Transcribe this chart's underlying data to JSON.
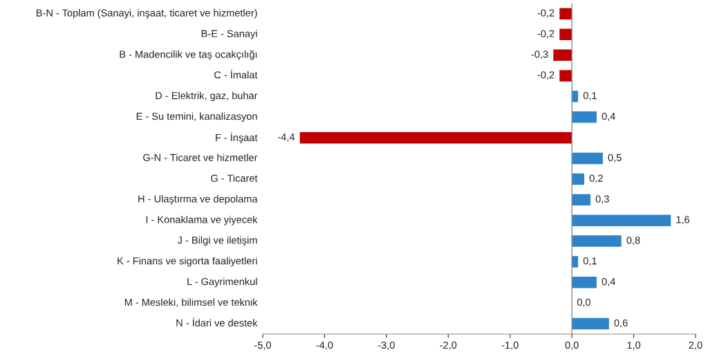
{
  "chart_data": {
    "type": "bar",
    "orientation": "horizontal",
    "categories": [
      "B-N - Toplam (Sanayi, inşaat, ticaret ve hizmetler)",
      "B-E - Sanayi",
      "B - Madencilik ve taş ocakçılığı",
      "C - İmalat",
      "D - Elektrik, gaz, buhar",
      "E - Su temini, kanalizasyon",
      "F - İnşaat",
      "G-N - Ticaret ve hizmetler",
      "G - Ticaret",
      "H - Ulaştırma ve depolama",
      "I - Konaklama ve yiyecek",
      "J - Bilgi ve iletişim",
      "K - Finans ve sigorta faaliyetleri",
      "L - Gayrimenkul",
      "M - Mesleki, bilimsel ve teknik",
      "N - İdari ve destek"
    ],
    "values": [
      -0.2,
      -0.2,
      -0.3,
      -0.2,
      0.1,
      0.4,
      -4.4,
      0.5,
      0.2,
      0.3,
      1.6,
      0.8,
      0.1,
      0.4,
      0.0,
      0.6
    ],
    "value_labels": [
      "-0,2",
      "-0,2",
      "-0,3",
      "-0,2",
      "0,1",
      "0,4",
      "-4,4",
      "0,5",
      "0,2",
      "0,3",
      "1,6",
      "0,8",
      "0,1",
      "0,4",
      "0,0",
      "0,6"
    ],
    "colors": [
      "#c00000",
      "#c00000",
      "#c00000",
      "#c00000",
      "#2e83c9",
      "#2e83c9",
      "#c00000",
      "#2e83c9",
      "#2e83c9",
      "#2e83c9",
      "#2e83c9",
      "#2e83c9",
      "#2e83c9",
      "#2e83c9",
      "#2e83c9",
      "#2e83c9"
    ],
    "xlim": [
      -5,
      2
    ],
    "xticks": [
      {
        "value": -5,
        "label": "-5,0"
      },
      {
        "value": -4,
        "label": "-4,0"
      },
      {
        "value": -3,
        "label": "-3,0"
      },
      {
        "value": -2,
        "label": "-2,0"
      },
      {
        "value": -1,
        "label": "-1,0"
      },
      {
        "value": 0,
        "label": "0,0"
      },
      {
        "value": 1,
        "label": "1,0"
      },
      {
        "value": 2,
        "label": "2,0"
      }
    ],
    "ref_lines": [
      {
        "axis": "x",
        "value": 0,
        "color": "#888888"
      }
    ],
    "legend": false
  }
}
